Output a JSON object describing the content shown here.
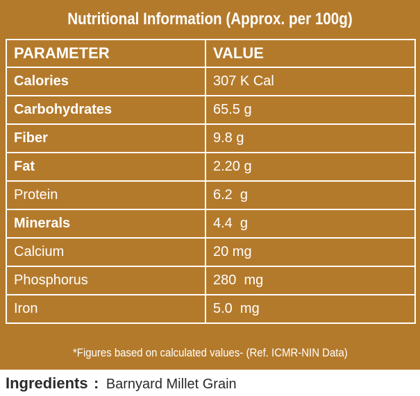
{
  "title": "Nutritional Information (Approx. per 100g)",
  "table": {
    "headers": [
      "PARAMETER",
      "VALUE"
    ],
    "rows": [
      {
        "parameter": "Calories",
        "value": "307 K Cal",
        "bold": true
      },
      {
        "parameter": "Carbohydrates",
        "value": "65.5 g",
        "bold": true
      },
      {
        "parameter": "Fiber",
        "value": "9.8 g",
        "bold": true
      },
      {
        "parameter": "Fat",
        "value": "2.20 g",
        "bold": true
      },
      {
        "parameter": "Protein",
        "value": "6.2  g",
        "bold": false
      },
      {
        "parameter": "Minerals",
        "value": "4.4  g",
        "bold": true
      },
      {
        "parameter": "Calcium",
        "value": "20 mg",
        "bold": false
      },
      {
        "parameter": "Phosphorus",
        "value": "280  mg",
        "bold": false
      },
      {
        "parameter": "Iron",
        "value": "5.0  mg",
        "bold": false
      }
    ]
  },
  "footnote": "*Figures based on calculated values- (Ref. ICMR-NIN Data)",
  "ingredients": {
    "label": "Ingredients",
    "separator": ":",
    "value": "Barnyard Millet Grain"
  },
  "colors": {
    "panel": "#b47a2b",
    "text_on_panel": "#ffffff",
    "ingredients_text": "#2a2a2a"
  }
}
